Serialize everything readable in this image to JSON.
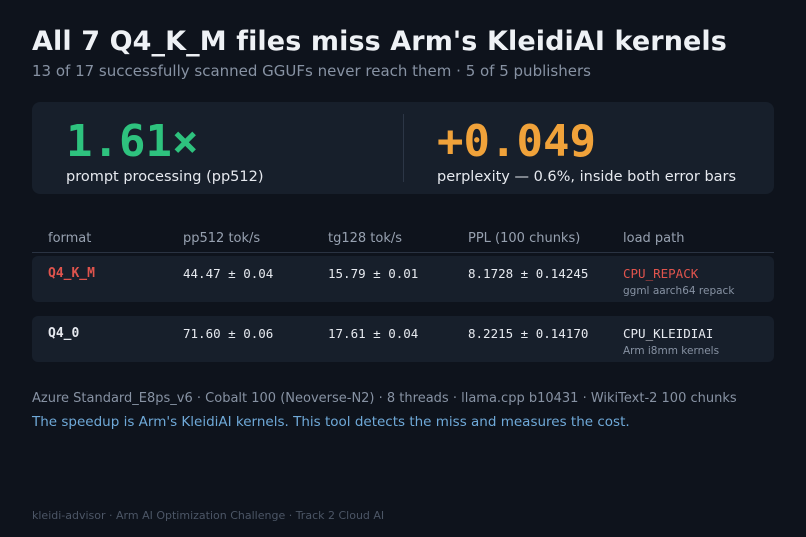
{
  "header": {
    "title": "All 7 Q4_K_M files miss Arm's KleidiAI kernels",
    "subtitle": "13 of 17 successfully scanned GGUFs never reach them  ·  5 of 5 publishers"
  },
  "kpis": [
    {
      "value": "1.61×",
      "label": "prompt processing (pp512)",
      "color": "#2ec27e"
    },
    {
      "value": "+0.049",
      "label": "perplexity — 0.6%, inside both error bars",
      "color": "#f0a23a"
    }
  ],
  "table": {
    "columns": [
      "format",
      "pp512 tok/s",
      "tg128 tok/s",
      "PPL (100 chunks)",
      "load path"
    ],
    "rows": [
      {
        "format": "Q4_K_M",
        "pp512": "44.47 ± 0.04",
        "tg128": "15.79 ± 0.01",
        "ppl": "8.1728 ± 0.14245",
        "load_path": "CPU_REPACK",
        "load_path_note": "ggml aarch64 repack",
        "accent": "#e0544d"
      },
      {
        "format": "Q4_0",
        "pp512": "71.60 ± 0.06",
        "tg128": "17.61 ± 0.04",
        "ppl": "8.2215 ± 0.14170",
        "load_path": "CPU_KLEIDIAI",
        "load_path_note": "Arm i8mm kernels",
        "accent": "#2ec27e"
      }
    ]
  },
  "environment": "Azure Standard_E8ps_v6 · Cobalt 100 (Neoverse-N2) · 8 threads · llama.cpp b10431 · WikiText-2 100 chunks",
  "note": "The speedup is Arm's KleidiAI kernels. This tool detects the miss and measures the cost.",
  "footer": "kleidi-advisor · Arm AI Optimization Challenge · Track 2 Cloud AI"
}
